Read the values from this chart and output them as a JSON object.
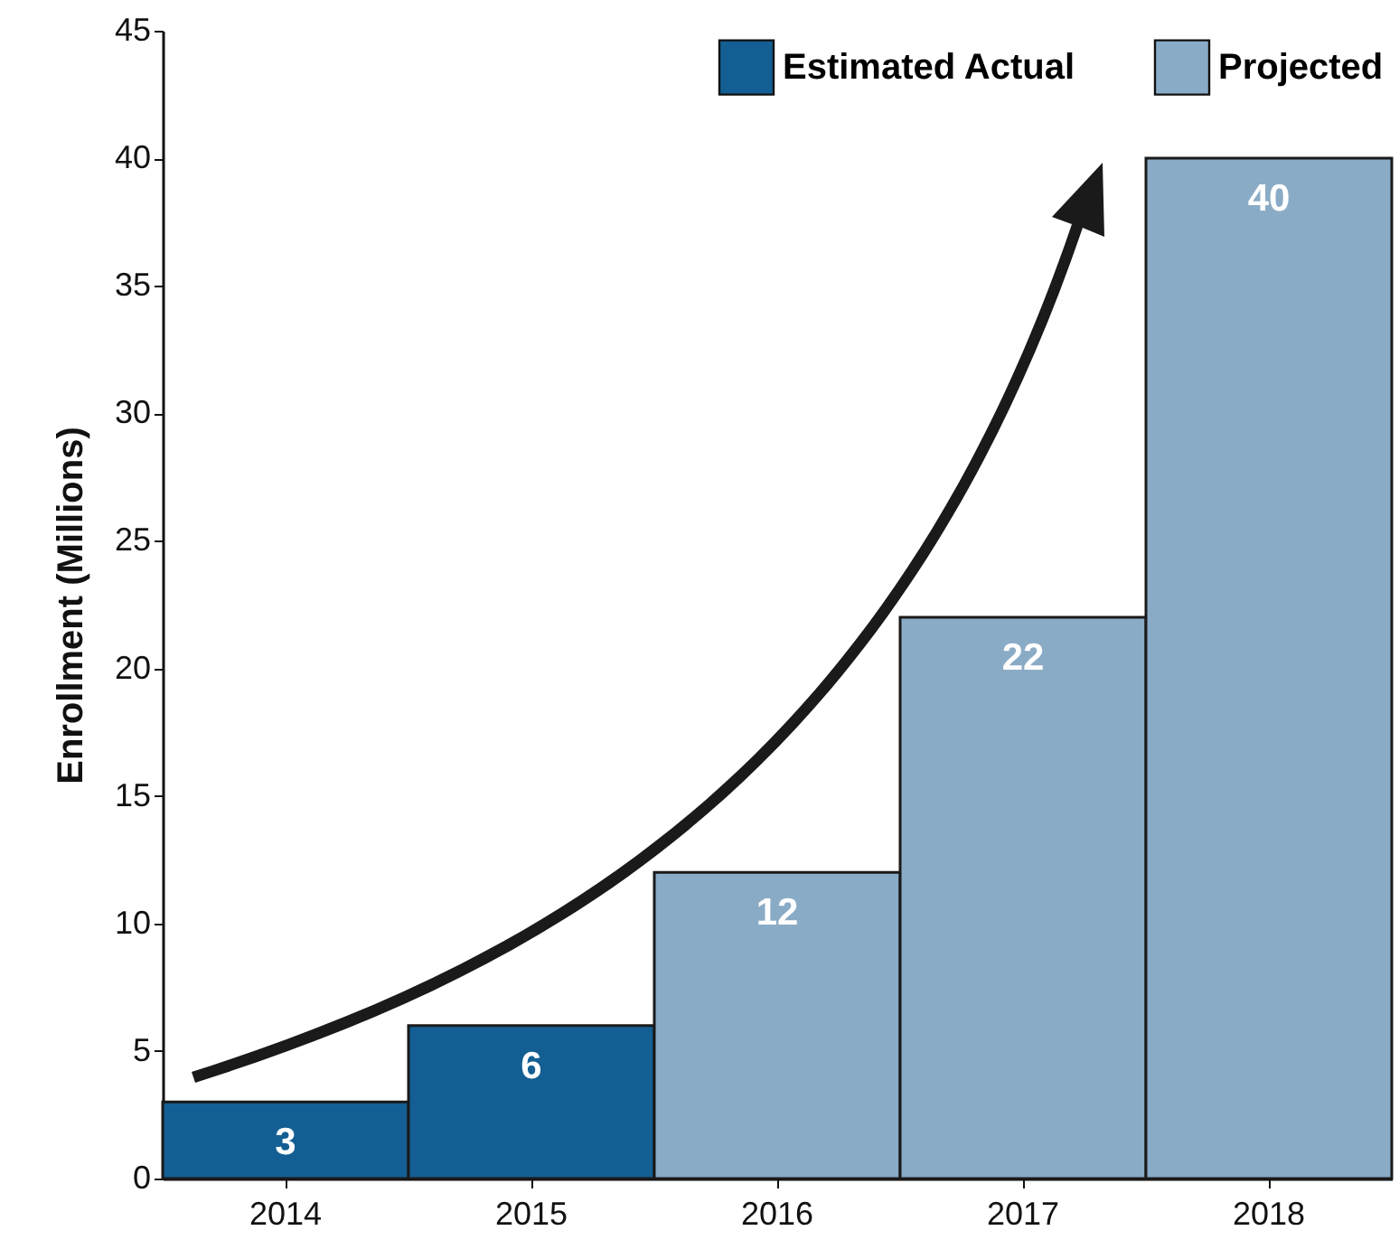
{
  "chart_data": {
    "type": "bar",
    "ylabel": "Enrollment (Millions)",
    "categories": [
      "2014",
      "2015",
      "2016",
      "2017",
      "2018"
    ],
    "series": [
      {
        "name": "Estimated Actual",
        "color": "#135f93",
        "values": [
          3,
          6,
          null,
          null,
          null
        ]
      },
      {
        "name": "Projected",
        "color": "#8aabc6",
        "values": [
          null,
          null,
          12,
          22,
          40
        ]
      }
    ],
    "ylim": [
      0,
      45
    ],
    "yticks": [
      0,
      5,
      10,
      15,
      20,
      25,
      30,
      35,
      40,
      45
    ],
    "grid": false,
    "legend": "top right",
    "data_labels": true
  }
}
